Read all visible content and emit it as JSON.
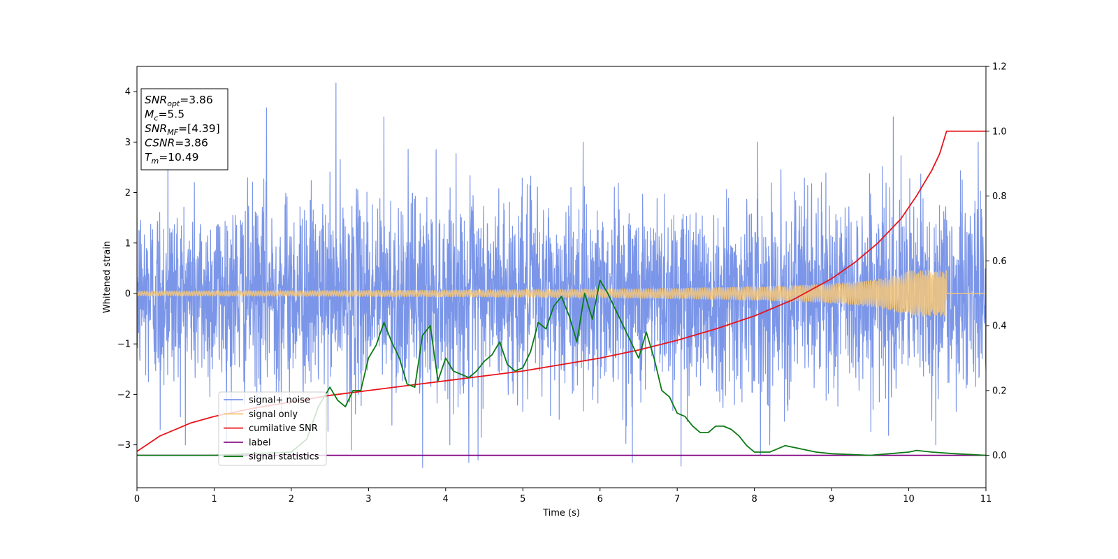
{
  "chart_data": {
    "type": "line",
    "title": "",
    "xlabel": "Time (s)",
    "ylabel_left": "Whitened strain",
    "ylabel_right": "",
    "xlim": [
      0,
      11
    ],
    "ylim_left": [
      -3.85,
      4.5
    ],
    "ylim_right": [
      -0.1,
      1.2
    ],
    "x_ticks": [
      0,
      1,
      2,
      3,
      4,
      5,
      6,
      7,
      8,
      9,
      10,
      11
    ],
    "y_ticks_left": [
      -3,
      -2,
      -1,
      0,
      1,
      2,
      3,
      4
    ],
    "y_ticks_right": [
      "0.0",
      "0.2",
      "0.4",
      "0.6",
      "0.8",
      "1.0",
      "1.2"
    ],
    "grid": false,
    "legend_position": "lower-left",
    "annotation": {
      "lines": [
        {
          "base": "SNR",
          "sub": "opt",
          "value": "=3.86"
        },
        {
          "base": "M",
          "sub": "c",
          "value": "=5.5"
        },
        {
          "base": "SNR",
          "sub": "MF",
          "value": "=[4.39]"
        },
        {
          "base": "CSNR",
          "sub": "",
          "value": "=3.86"
        },
        {
          "base": "T",
          "sub": "m",
          "value": "=10.49"
        }
      ]
    },
    "series": [
      {
        "name": "signal+ noise",
        "axis": "left",
        "color": "#7b96e8",
        "style": "noise",
        "sigma": 0.95,
        "peaks": [
          [
            2.58,
            4.17
          ],
          [
            1.68,
            3.68
          ],
          [
            3.2,
            3.5
          ],
          [
            6.42,
            3.35
          ],
          [
            9.8,
            3.5
          ],
          [
            10.9,
            3.0
          ],
          [
            0.4,
            3.1
          ]
        ],
        "troughs": [
          [
            3.7,
            -3.45
          ],
          [
            4.3,
            -3.35
          ],
          [
            4.42,
            -3.3
          ],
          [
            6.42,
            -3.35
          ],
          [
            7.05,
            -3.42
          ],
          [
            8.08,
            -3.2
          ],
          [
            10.35,
            -3.0
          ],
          [
            2.78,
            -3.1
          ],
          [
            0.3,
            -2.7
          ]
        ]
      },
      {
        "name": "signal only",
        "axis": "left",
        "color": "#f5c77a",
        "style": "chirp",
        "tc": 10.49,
        "amp_start": 0.02,
        "amp_end": 0.45
      },
      {
        "name": "cumilative SNR",
        "axis": "right",
        "color": "#e8141a",
        "x": [
          0,
          0.3,
          0.7,
          1.0,
          1.5,
          2.0,
          2.5,
          3.0,
          3.5,
          4.0,
          4.5,
          5.0,
          5.5,
          6.0,
          6.5,
          7.0,
          7.5,
          8.0,
          8.5,
          9.0,
          9.3,
          9.6,
          9.9,
          10.1,
          10.3,
          10.4,
          10.49,
          10.6,
          11.0
        ],
        "y": [
          0.012,
          0.06,
          0.1,
          0.12,
          0.145,
          0.165,
          0.185,
          0.2,
          0.215,
          0.23,
          0.245,
          0.26,
          0.28,
          0.3,
          0.325,
          0.355,
          0.39,
          0.43,
          0.48,
          0.545,
          0.595,
          0.655,
          0.73,
          0.8,
          0.88,
          0.93,
          1.0,
          1.0,
          1.0
        ]
      },
      {
        "name": "label",
        "axis": "right",
        "color": "#800080",
        "x": [
          0,
          11
        ],
        "y": [
          0.0,
          0.0
        ]
      },
      {
        "name": "signal statistics",
        "axis": "right",
        "color": "#0a7a14",
        "x": [
          0,
          1.0,
          2.0,
          2.2,
          2.35,
          2.5,
          2.6,
          2.7,
          2.8,
          2.9,
          3.0,
          3.1,
          3.2,
          3.3,
          3.4,
          3.5,
          3.6,
          3.7,
          3.8,
          3.9,
          4.0,
          4.1,
          4.2,
          4.3,
          4.4,
          4.5,
          4.6,
          4.7,
          4.8,
          4.9,
          5.0,
          5.1,
          5.2,
          5.3,
          5.4,
          5.5,
          5.6,
          5.7,
          5.8,
          5.9,
          6.0,
          6.1,
          6.2,
          6.3,
          6.4,
          6.5,
          6.6,
          6.7,
          6.8,
          6.9,
          7.0,
          7.1,
          7.2,
          7.3,
          7.4,
          7.5,
          7.6,
          7.7,
          7.8,
          7.9,
          8.0,
          8.2,
          8.4,
          8.6,
          8.8,
          9.0,
          9.5,
          10.0,
          10.1,
          10.3,
          10.6,
          11.0
        ],
        "y": [
          0.0,
          0.0,
          0.01,
          0.05,
          0.15,
          0.21,
          0.17,
          0.15,
          0.2,
          0.2,
          0.3,
          0.34,
          0.41,
          0.35,
          0.3,
          0.22,
          0.21,
          0.37,
          0.4,
          0.23,
          0.3,
          0.26,
          0.25,
          0.24,
          0.26,
          0.29,
          0.31,
          0.35,
          0.28,
          0.26,
          0.27,
          0.32,
          0.41,
          0.39,
          0.46,
          0.49,
          0.43,
          0.35,
          0.5,
          0.42,
          0.54,
          0.5,
          0.45,
          0.4,
          0.35,
          0.3,
          0.38,
          0.3,
          0.2,
          0.18,
          0.13,
          0.12,
          0.09,
          0.07,
          0.07,
          0.09,
          0.09,
          0.08,
          0.06,
          0.03,
          0.01,
          0.01,
          0.03,
          0.02,
          0.01,
          0.005,
          0.0,
          0.01,
          0.015,
          0.01,
          0.005,
          0.0
        ]
      }
    ]
  }
}
